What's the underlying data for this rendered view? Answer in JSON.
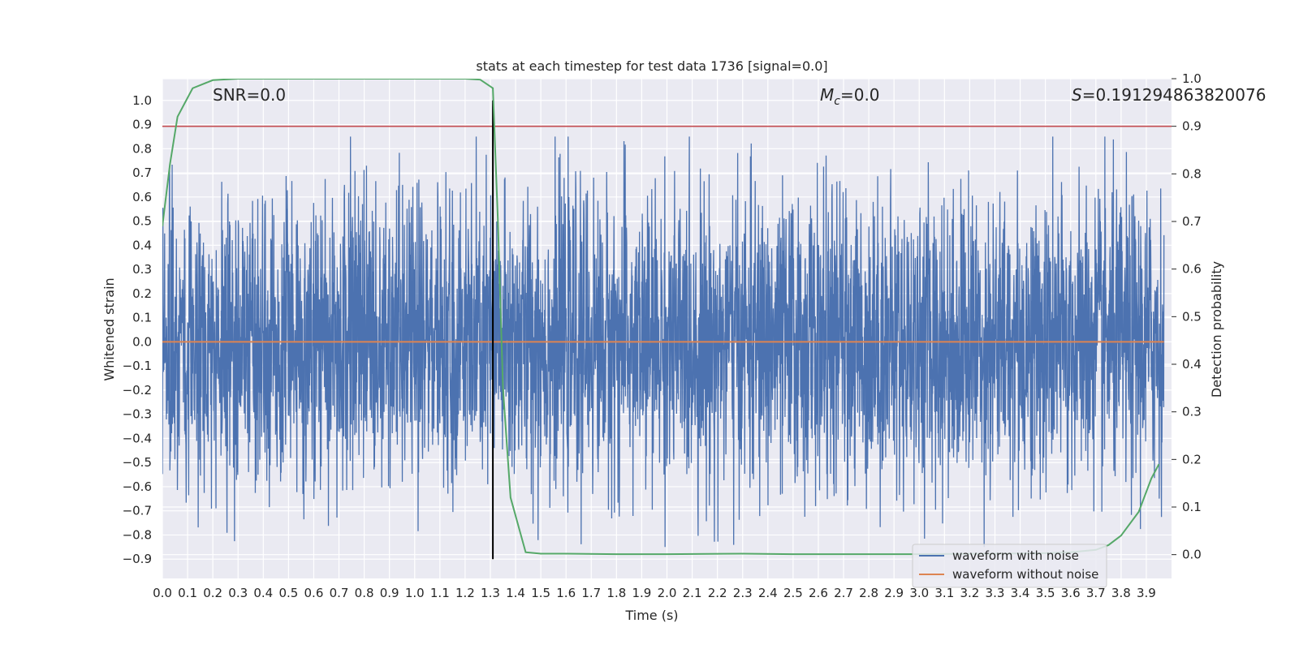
{
  "chart_data": {
    "type": "line",
    "title": "stats at each timestep for test data 1736 [signal=0.0]",
    "xlabel": "Time (s)",
    "ylabel": "Whitened strain",
    "y2label": "Detection probability",
    "xlim": [
      0.0,
      4.0
    ],
    "ylim": [
      -0.98,
      1.09
    ],
    "y2lim": [
      -0.05,
      1.0
    ],
    "x_ticks": [
      "0.0",
      "0.1",
      "0.2",
      "0.3",
      "0.4",
      "0.5",
      "0.6",
      "0.7",
      "0.8",
      "0.9",
      "1.0",
      "1.1",
      "1.2",
      "1.3",
      "1.4",
      "1.5",
      "1.6",
      "1.7",
      "1.8",
      "1.9",
      "2.0",
      "2.1",
      "2.2",
      "2.3",
      "2.4",
      "2.5",
      "2.6",
      "2.7",
      "2.8",
      "2.9",
      "3.0",
      "3.1",
      "3.2",
      "3.3",
      "3.4",
      "3.5",
      "3.6",
      "3.7",
      "3.8",
      "3.9"
    ],
    "y_ticks": [
      "−0.9",
      "−0.8",
      "−0.7",
      "−0.6",
      "−0.5",
      "−0.4",
      "−0.3",
      "−0.2",
      "−0.1",
      "0.0",
      "0.1",
      "0.2",
      "0.3",
      "0.4",
      "0.5",
      "0.6",
      "0.7",
      "0.8",
      "0.9",
      "1.0"
    ],
    "y2_ticks": [
      "0.0",
      "0.1",
      "0.2",
      "0.3",
      "0.4",
      "0.5",
      "0.6",
      "0.7",
      "0.8",
      "0.9",
      "1.0"
    ],
    "grid": true,
    "background": "#EAEAF2",
    "annotations": {
      "snr": "SNR=0.0",
      "mc_symbol": "M",
      "mc_sub": "c",
      "mc_value": "=0.0",
      "s_symbol": "S",
      "s_value": "=0.191294863820076"
    },
    "series": [
      {
        "name": "waveform with noise",
        "color": "#4C72B0",
        "axis": "left",
        "noise_amplitude": 0.85,
        "n_points": 4000
      },
      {
        "name": "waveform without noise",
        "color": "#DD8452",
        "axis": "left",
        "constant": 0.0
      },
      {
        "name": "",
        "color": "#55A868",
        "axis": "right",
        "x": [
          0.0,
          0.03,
          0.06,
          0.12,
          0.2,
          0.3,
          0.5,
          0.8,
          1.0,
          1.2,
          1.26,
          1.31,
          1.33,
          1.35,
          1.38,
          1.44,
          1.5,
          1.6,
          1.8,
          2.0,
          2.3,
          2.5,
          2.8,
          3.0,
          3.3,
          3.5,
          3.6,
          3.7,
          3.75,
          3.8,
          3.87,
          3.92,
          3.95
        ],
        "values": [
          0.69,
          0.82,
          0.92,
          0.98,
          0.997,
          1.0,
          1.0,
          1.0,
          1.0,
          1.0,
          0.998,
          0.98,
          0.7,
          0.35,
          0.12,
          0.005,
          0.002,
          0.002,
          0.001,
          0.001,
          0.002,
          0.001,
          0.001,
          0.001,
          0.002,
          0.003,
          0.005,
          0.01,
          0.02,
          0.04,
          0.09,
          0.16,
          0.19
        ]
      }
    ],
    "reference_lines": [
      {
        "orientation": "horizontal",
        "axis": "right",
        "value": 0.9,
        "color": "#C44E52"
      },
      {
        "orientation": "vertical",
        "x": 1.31,
        "y_from": -0.9,
        "y_to": 1.0,
        "color": "#000000"
      }
    ],
    "legend_position": "lower-right"
  }
}
